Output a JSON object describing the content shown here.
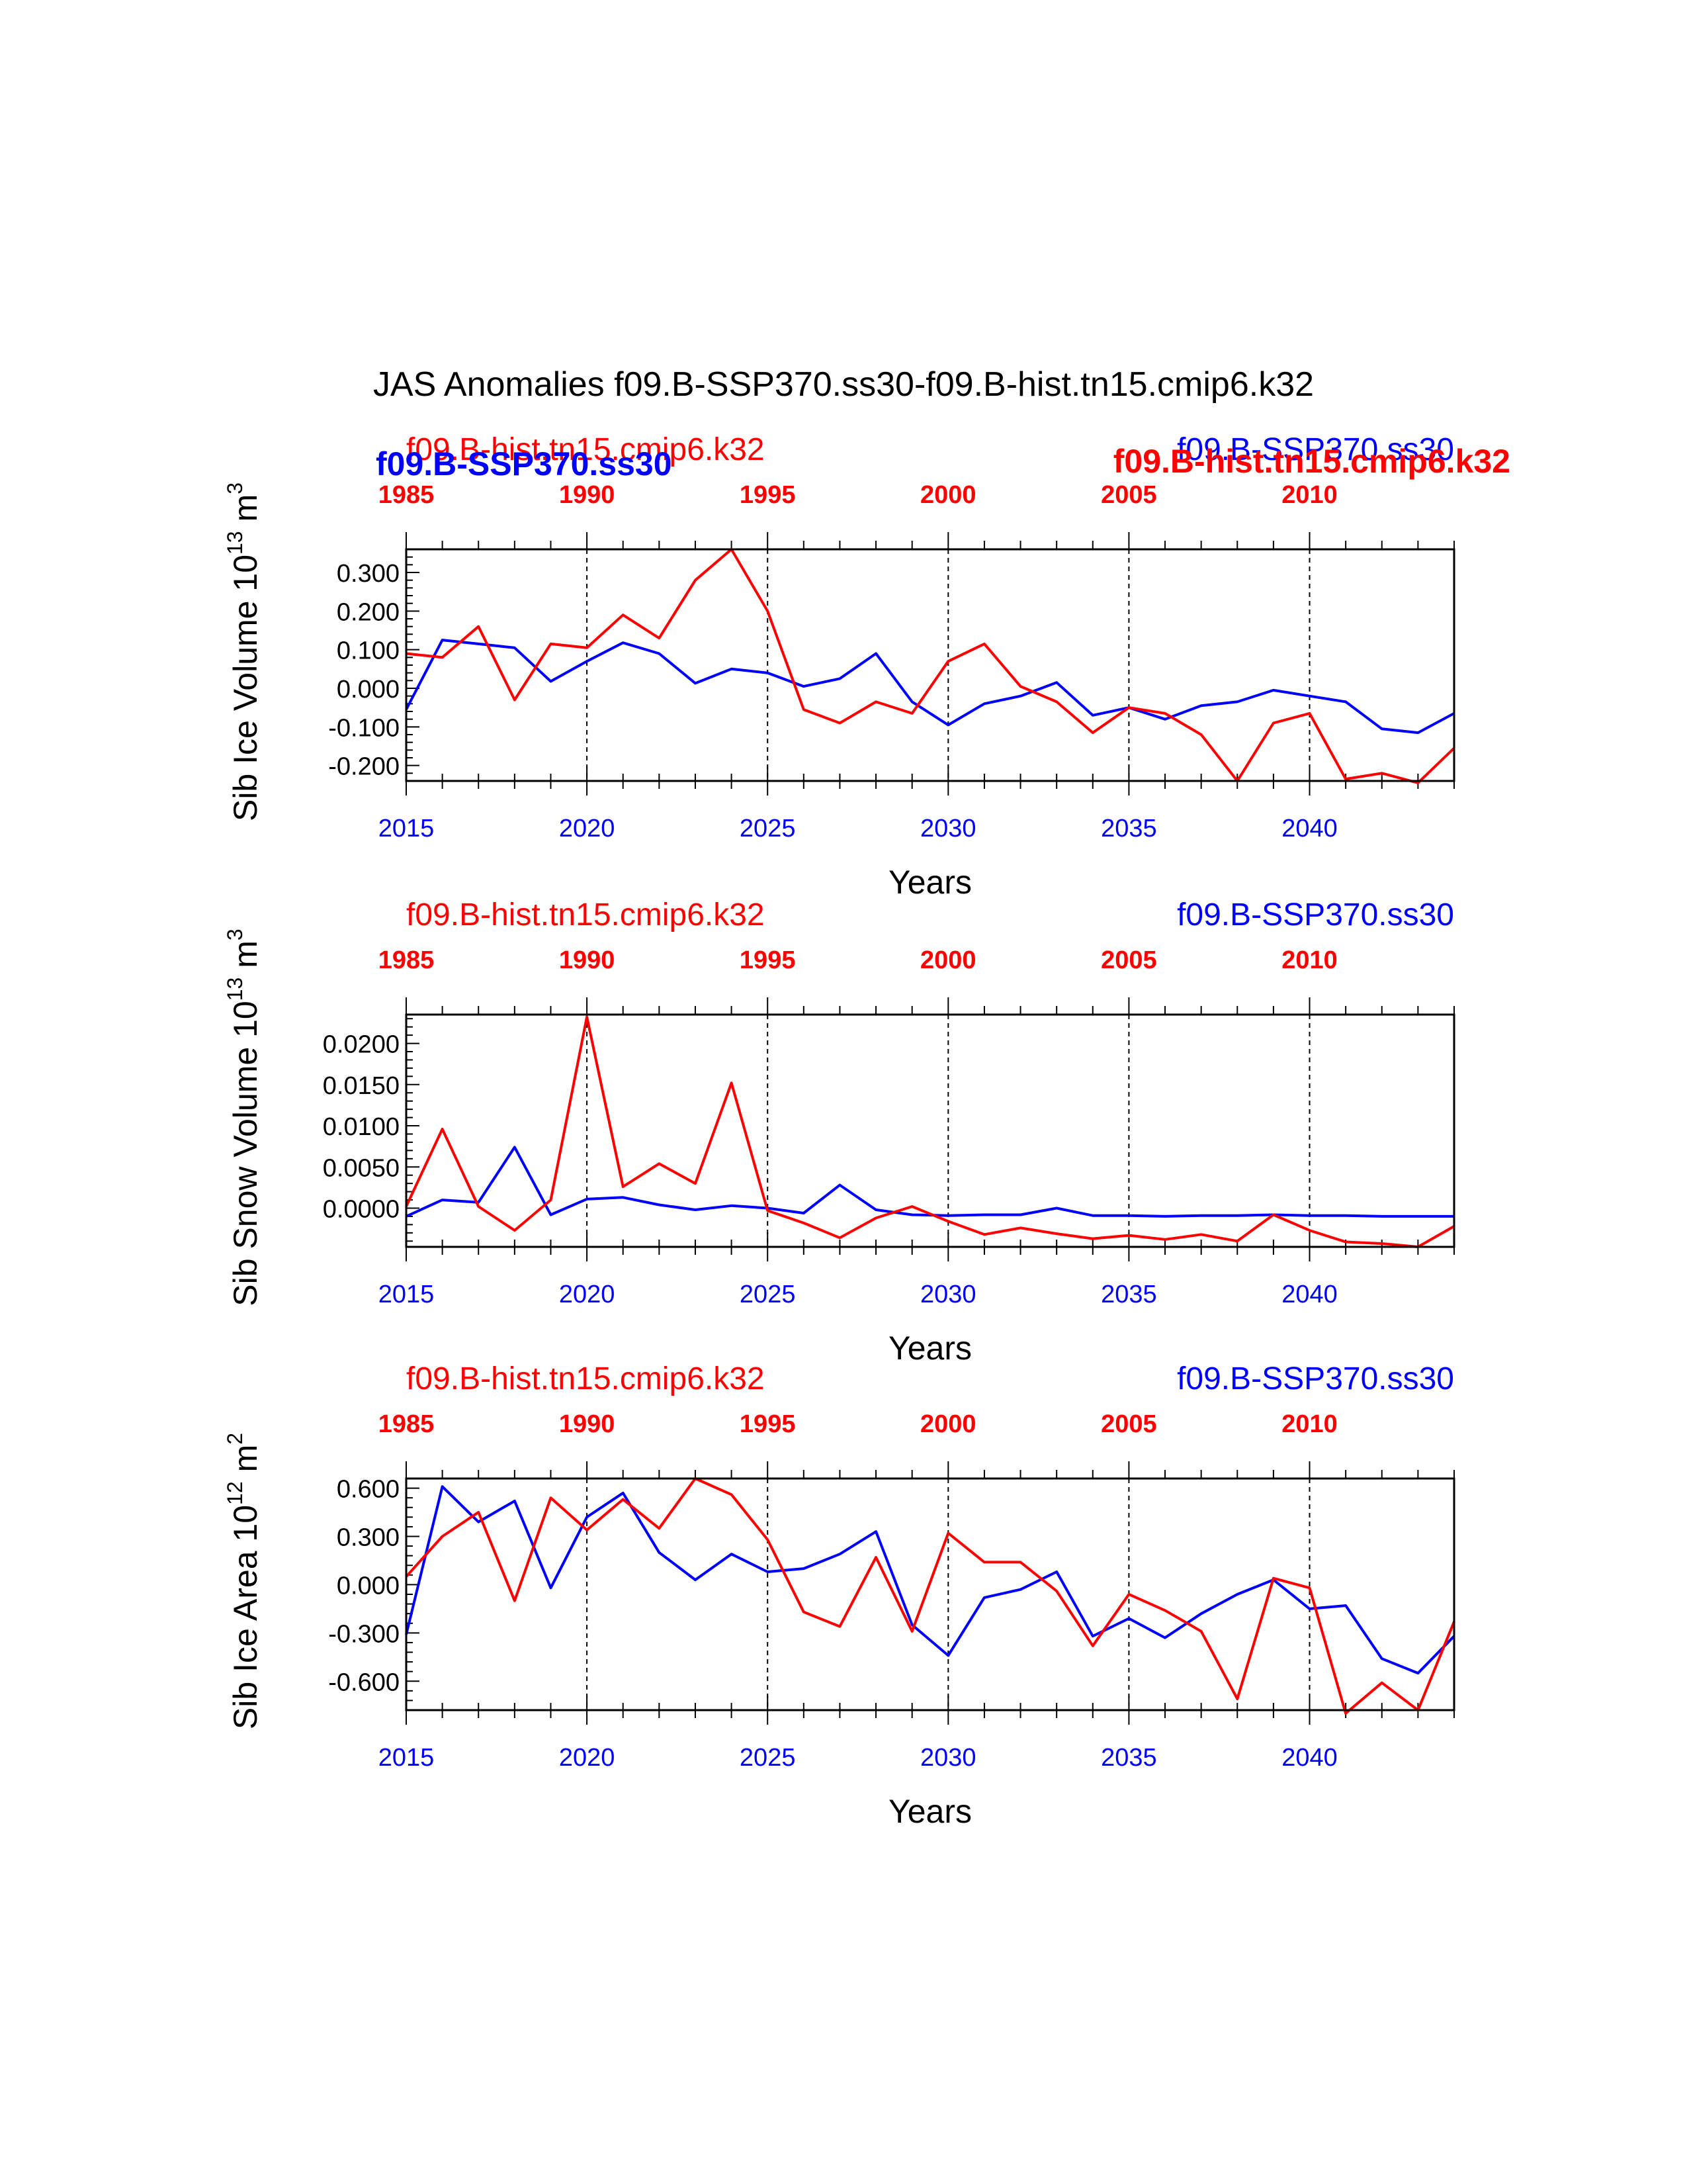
{
  "figure": {
    "title": "JAS Anomalies f09.B-SSP370.ss30-f09.B-hist.tn15.cmip6.k32",
    "colors": {
      "ssp": "#0000ff",
      "hist": "#ff0000",
      "axis": "#000000"
    },
    "overlap_labels": {
      "left": "f09.B-SSP370.ss30",
      "right": "f09.B-hist.tn15.cmip6.k32"
    }
  },
  "chart_data": [
    {
      "type": "line",
      "ylabel": "Sib Ice Volume 10",
      "ylabel_exp": "13",
      "ylabel_unit": "m",
      "ylabel_unit_exp": "3",
      "xlabel": "Years",
      "ylim": [
        -0.24,
        0.36
      ],
      "yticks": [
        -0.2,
        -0.1,
        0.0,
        0.1,
        0.2,
        0.3
      ],
      "ytick_labels": [
        "-0.200",
        "-0.100",
        "0.000",
        "0.100",
        "0.200",
        "0.300"
      ],
      "yminor_step": 0.02,
      "xlim": [
        2015,
        2044
      ],
      "xticks": [
        2015,
        2020,
        2025,
        2030,
        2035,
        2040
      ],
      "xtick_labels": [
        "2015",
        "2020",
        "2025",
        "2030",
        "2035",
        "2040"
      ],
      "top_xticks": [
        1985,
        1990,
        1995,
        2000,
        2005,
        2010
      ],
      "top_xtick_labels": [
        "1985",
        "1990",
        "1995",
        "2000",
        "2005",
        "2010"
      ],
      "top_offset": 30,
      "legend_left": "f09.B-hist.tn15.cmip6.k32",
      "legend_right": "f09.B-SSP370.ss30",
      "x": [
        2015,
        2016,
        2017,
        2018,
        2019,
        2020,
        2021,
        2022,
        2023,
        2024,
        2025,
        2026,
        2027,
        2028,
        2029,
        2030,
        2031,
        2032,
        2033,
        2034,
        2035,
        2036,
        2037,
        2038,
        2039,
        2040,
        2041,
        2042,
        2043,
        2044
      ],
      "series": [
        {
          "name": "f09.B-SSP370.ss30",
          "color": "#0000ff",
          "values": [
            -0.055,
            0.125,
            0.115,
            0.105,
            0.018,
            0.07,
            0.118,
            0.09,
            0.013,
            0.05,
            0.04,
            0.005,
            0.025,
            0.09,
            -0.035,
            -0.095,
            -0.04,
            -0.02,
            0.015,
            -0.07,
            -0.05,
            -0.08,
            -0.045,
            -0.035,
            -0.005,
            -0.02,
            -0.035,
            -0.105,
            -0.115,
            -0.065
          ]
        },
        {
          "name": "f09.B-hist.tn15.cmip6.k32",
          "color": "#ff0000",
          "values": [
            0.09,
            0.08,
            0.16,
            -0.03,
            0.115,
            0.105,
            0.19,
            0.13,
            0.28,
            0.36,
            0.2,
            -0.055,
            -0.09,
            -0.035,
            -0.065,
            0.07,
            0.115,
            0.005,
            -0.035,
            -0.115,
            -0.05,
            -0.065,
            -0.12,
            -0.24,
            -0.09,
            -0.065,
            -0.235,
            -0.22,
            -0.245,
            -0.155
          ]
        }
      ]
    },
    {
      "type": "line",
      "ylabel": "Sib Snow Volume 10",
      "ylabel_exp": "13",
      "ylabel_unit": "m",
      "ylabel_unit_exp": "3",
      "xlabel": "Years",
      "ylim": [
        -0.0047,
        0.0235
      ],
      "yticks": [
        0.0,
        0.005,
        0.01,
        0.015,
        0.02
      ],
      "ytick_labels": [
        "0.0000",
        "0.0050",
        "0.0100",
        "0.0150",
        "0.0200"
      ],
      "yminor_step": 0.001,
      "xlim": [
        2015,
        2044
      ],
      "xticks": [
        2015,
        2020,
        2025,
        2030,
        2035,
        2040
      ],
      "xtick_labels": [
        "2015",
        "2020",
        "2025",
        "2030",
        "2035",
        "2040"
      ],
      "top_xticks": [
        1985,
        1990,
        1995,
        2000,
        2005,
        2010
      ],
      "top_xtick_labels": [
        "1985",
        "1990",
        "1995",
        "2000",
        "2005",
        "2010"
      ],
      "top_offset": 30,
      "legend_left": "f09.B-hist.tn15.cmip6.k32",
      "legend_right": "f09.B-SSP370.ss30",
      "x": [
        2015,
        2016,
        2017,
        2018,
        2019,
        2020,
        2021,
        2022,
        2023,
        2024,
        2025,
        2026,
        2027,
        2028,
        2029,
        2030,
        2031,
        2032,
        2033,
        2034,
        2035,
        2036,
        2037,
        2038,
        2039,
        2040,
        2041,
        2042,
        2043,
        2044
      ],
      "series": [
        {
          "name": "f09.B-SSP370.ss30",
          "color": "#0000ff",
          "values": [
            -0.001,
            0.001,
            0.0007,
            0.0074,
            -0.0008,
            0.0011,
            0.0013,
            0.0004,
            -0.0002,
            0.0003,
            0.0,
            -0.0006,
            0.0028,
            -0.0002,
            -0.0008,
            -0.0009,
            -0.0008,
            -0.0008,
            0.0,
            -0.0009,
            -0.0009,
            -0.001,
            -0.0009,
            -0.0009,
            -0.0008,
            -0.0009,
            -0.0009,
            -0.001,
            -0.001,
            -0.001
          ]
        },
        {
          "name": "f09.B-hist.tn15.cmip6.k32",
          "color": "#ff0000",
          "values": [
            0.0002,
            0.0096,
            0.0002,
            -0.0027,
            0.001,
            0.0232,
            0.0026,
            0.0054,
            0.003,
            0.0152,
            -0.0003,
            -0.0018,
            -0.0036,
            -0.0012,
            0.0002,
            -0.0016,
            -0.0032,
            -0.0024,
            -0.0031,
            -0.0037,
            -0.0033,
            -0.0038,
            -0.0032,
            -0.004,
            -0.0008,
            -0.0027,
            -0.0041,
            -0.0043,
            -0.0047,
            -0.0022
          ]
        }
      ]
    },
    {
      "type": "line",
      "ylabel": "Sib Ice Area 10",
      "ylabel_exp": "12",
      "ylabel_unit": "m",
      "ylabel_unit_exp": "2",
      "xlabel": "Years",
      "ylim": [
        -0.78,
        0.66
      ],
      "yticks": [
        -0.6,
        -0.3,
        0.0,
        0.3,
        0.6
      ],
      "ytick_labels": [
        "-0.600",
        "-0.300",
        "0.000",
        "0.300",
        "0.600"
      ],
      "yminor_step": 0.06,
      "xlim": [
        2015,
        2044
      ],
      "xticks": [
        2015,
        2020,
        2025,
        2030,
        2035,
        2040
      ],
      "xtick_labels": [
        "2015",
        "2020",
        "2025",
        "2030",
        "2035",
        "2040"
      ],
      "top_xticks": [
        1985,
        1990,
        1995,
        2000,
        2005,
        2010
      ],
      "top_xtick_labels": [
        "1985",
        "1990",
        "1995",
        "2000",
        "2005",
        "2010"
      ],
      "top_offset": 30,
      "legend_left": "f09.B-hist.tn15.cmip6.k32",
      "legend_right": "f09.B-SSP370.ss30",
      "x": [
        2015,
        2016,
        2017,
        2018,
        2019,
        2020,
        2021,
        2022,
        2023,
        2024,
        2025,
        2026,
        2027,
        2028,
        2029,
        2030,
        2031,
        2032,
        2033,
        2034,
        2035,
        2036,
        2037,
        2038,
        2039,
        2040,
        2041,
        2042,
        2043,
        2044
      ],
      "series": [
        {
          "name": "f09.B-SSP370.ss30",
          "color": "#0000ff",
          "values": [
            -0.31,
            0.61,
            0.39,
            0.52,
            -0.02,
            0.42,
            0.57,
            0.2,
            0.03,
            0.19,
            0.08,
            0.1,
            0.19,
            0.33,
            -0.25,
            -0.44,
            -0.08,
            -0.03,
            0.08,
            -0.32,
            -0.21,
            -0.33,
            -0.18,
            -0.06,
            0.03,
            -0.15,
            -0.13,
            -0.46,
            -0.55,
            -0.32
          ]
        },
        {
          "name": "f09.B-hist.tn15.cmip6.k32",
          "color": "#ff0000",
          "values": [
            0.05,
            0.3,
            0.45,
            -0.1,
            0.54,
            0.34,
            0.53,
            0.35,
            0.66,
            0.56,
            0.28,
            -0.17,
            -0.26,
            0.17,
            -0.29,
            0.32,
            0.14,
            0.14,
            -0.04,
            -0.38,
            -0.06,
            -0.16,
            -0.29,
            -0.71,
            0.04,
            -0.02,
            -0.8,
            -0.61,
            -0.78,
            -0.23
          ]
        }
      ]
    }
  ]
}
